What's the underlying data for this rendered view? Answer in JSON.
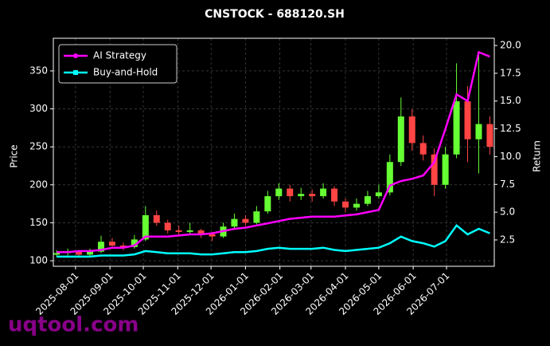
{
  "chart_data": {
    "type": "candlestick",
    "title": "CNSTOCK - 688120.SH",
    "ylabel": "Price",
    "y2label": "Return",
    "watermark": "uqtool.com",
    "grid": true,
    "legend": "upper left",
    "up_color": "#66ff33",
    "down_color": "#ff4444",
    "xlim": [
      "2025-07-12",
      "2026-08-13"
    ],
    "xticks": [
      "2025-08-01",
      "2025-09-01",
      "2025-10-01",
      "2025-11-01",
      "2025-12-01",
      "2026-01-01",
      "2026-02-01",
      "2026-03-01",
      "2026-04-01",
      "2026-05-01",
      "2026-06-01",
      "2026-07-01"
    ],
    "ylim": [
      92.7,
      393
    ],
    "yticks": [
      100,
      150,
      200,
      250,
      300,
      350
    ],
    "y2lim": [
      0.13,
      20.65
    ],
    "y2ticks": [
      2.5,
      {
        "value": 5,
        "label": "5.0"
      },
      7.5,
      {
        "value": 10,
        "label": "10.0"
      },
      12.5,
      {
        "value": 15,
        "label": "15.0"
      },
      17.5,
      {
        "value": 20,
        "label": "20.0"
      }
    ],
    "x": [
      "2025-07-15",
      "2025-07-25",
      "2025-08-04",
      "2025-08-14",
      "2025-08-24",
      "2025-09-03",
      "2025-09-13",
      "2025-09-23",
      "2025-10-03",
      "2025-10-13",
      "2025-10-23",
      "2025-11-02",
      "2025-11-12",
      "2025-11-22",
      "2025-12-02",
      "2025-12-12",
      "2025-12-22",
      "2026-01-01",
      "2026-01-11",
      "2026-01-21",
      "2026-01-31",
      "2026-02-10",
      "2026-02-20",
      "2026-03-02",
      "2026-03-12",
      "2026-03-22",
      "2026-04-01",
      "2026-04-11",
      "2026-04-21",
      "2026-05-01",
      "2026-05-11",
      "2026-05-21",
      "2026-05-31",
      "2026-06-10",
      "2026-06-20",
      "2026-06-30",
      "2026-07-10",
      "2026-07-20",
      "2026-07-30",
      "2026-08-09"
    ],
    "open": [
      108,
      110,
      112,
      108,
      112,
      125,
      120,
      118,
      128,
      160,
      150,
      140,
      138,
      140,
      135,
      132,
      145,
      155,
      150,
      165,
      185,
      195,
      185,
      188,
      185,
      195,
      178,
      170,
      175,
      185,
      190,
      230,
      290,
      255,
      240,
      200,
      240,
      310,
      260,
      280
    ],
    "high": [
      114,
      116,
      114,
      116,
      133,
      130,
      124,
      134,
      172,
      166,
      154,
      146,
      150,
      142,
      138,
      150,
      162,
      160,
      172,
      192,
      202,
      200,
      196,
      194,
      202,
      198,
      182,
      182,
      192,
      200,
      240,
      315,
      300,
      265,
      248,
      250,
      360,
      330,
      375,
      290
    ],
    "low": [
      105,
      107,
      104,
      105,
      110,
      116,
      114,
      116,
      126,
      146,
      136,
      132,
      134,
      130,
      126,
      130,
      142,
      146,
      148,
      162,
      180,
      178,
      180,
      178,
      182,
      172,
      164,
      166,
      172,
      182,
      186,
      225,
      245,
      232,
      185,
      195,
      235,
      230,
      215,
      240
    ],
    "close": [
      110,
      112,
      108,
      112,
      125,
      120,
      118,
      128,
      160,
      150,
      140,
      138,
      140,
      135,
      132,
      145,
      155,
      150,
      165,
      185,
      195,
      185,
      188,
      185,
      195,
      178,
      170,
      175,
      185,
      190,
      230,
      290,
      255,
      240,
      200,
      240,
      310,
      260,
      280,
      250
    ],
    "series": [
      {
        "name": "AI Strategy",
        "color": "#ff00ff",
        "axis": "y2",
        "values": [
          1.4,
          1.4,
          1.5,
          1.5,
          1.6,
          1.8,
          1.8,
          2.0,
          2.8,
          2.8,
          2.8,
          2.9,
          3.0,
          3.0,
          3.1,
          3.3,
          3.5,
          3.6,
          3.8,
          4.0,
          4.2,
          4.4,
          4.5,
          4.6,
          4.6,
          4.6,
          4.7,
          4.8,
          5.0,
          5.2,
          7.4,
          7.8,
          8.0,
          8.3,
          9.5,
          12.5,
          15.6,
          15.0,
          19.4,
          19.0
        ]
      },
      {
        "name": "Buy-and-Hold",
        "color": "#00ffff",
        "axis": "y2",
        "values": [
          1.0,
          1.0,
          1.0,
          1.0,
          1.1,
          1.1,
          1.1,
          1.2,
          1.5,
          1.4,
          1.3,
          1.3,
          1.3,
          1.2,
          1.2,
          1.3,
          1.4,
          1.4,
          1.5,
          1.7,
          1.8,
          1.7,
          1.7,
          1.7,
          1.8,
          1.6,
          1.5,
          1.6,
          1.7,
          1.8,
          2.2,
          2.8,
          2.4,
          2.2,
          1.9,
          2.4,
          3.8,
          3.0,
          3.5,
          3.1
        ]
      }
    ]
  }
}
